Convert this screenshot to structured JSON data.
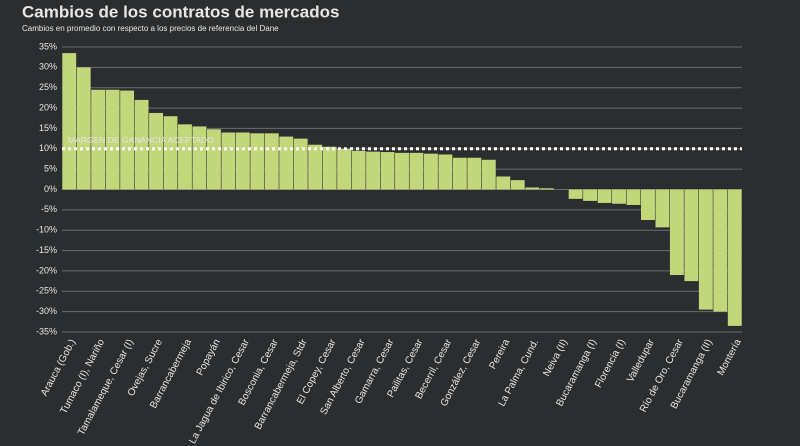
{
  "chart_data": {
    "type": "bar",
    "title": "Cambios de los contratos de mercados",
    "subtitle": "Cambios en promedio con respecto a los precios de referencia del Dane",
    "categories": [
      "Arauca (Gob.)",
      null,
      "Tumaco (I), Nariño",
      null,
      "Tamalameque, Cesar (I)",
      null,
      "Ovejas, Sucre",
      null,
      "Barrancabermeja",
      null,
      "Popayán",
      null,
      "La Jagua de Ibirico, Cesar",
      null,
      "Bosconia, Cesar",
      null,
      "Barrancabermeja, Stdr",
      null,
      "El Copey, Cesar",
      null,
      "San Alberto, Cesar",
      null,
      "Gamarra, Cesar",
      null,
      "Pailitas, Cesar",
      null,
      "Becerril, Cesar",
      null,
      "González, Cesar",
      null,
      "Pereira",
      null,
      "La Palma, Cund.",
      null,
      "Neiva (II)",
      null,
      "Bucaramanga (I)",
      null,
      "Florencia (I)",
      null,
      "Valledupar",
      null,
      "Río de Oro, Cesar",
      null,
      "Bucaramanga (II)",
      null,
      "Montería"
    ],
    "values": [
      33.5,
      30,
      24.5,
      24.5,
      24.3,
      22,
      18.8,
      18,
      16,
      15.5,
      14.8,
      14,
      14,
      13.8,
      13.8,
      13,
      12.5,
      11,
      10.5,
      10,
      9.5,
      9.3,
      9.2,
      9,
      9,
      8.8,
      8.6,
      7.8,
      7.8,
      7.3,
      3.2,
      2.3,
      0.5,
      0.3,
      0,
      -2.3,
      -2.8,
      -3.3,
      -3.5,
      -3.8,
      -7.5,
      -9.3,
      -21,
      -22.5,
      -29.5,
      -30,
      -33.5
    ],
    "color": "#c2d67a",
    "ylim": [
      -35,
      35
    ],
    "yticks": [
      {
        "value": -35,
        "label": "-35%"
      },
      {
        "value": -30,
        "label": "-30%"
      },
      {
        "value": -25,
        "label": "-25%"
      },
      {
        "value": -20,
        "label": "-20%"
      },
      {
        "value": -15,
        "label": "-15%"
      },
      {
        "value": -10,
        "label": "-10%"
      },
      {
        "value": -5,
        "label": "-5%"
      },
      {
        "value": 0,
        "label": "0%"
      },
      {
        "value": 5,
        "label": "5%"
      },
      {
        "value": 10,
        "label": "10%"
      },
      {
        "value": 15,
        "label": "15%"
      },
      {
        "value": 20,
        "label": "20%"
      },
      {
        "value": 25,
        "label": "25%"
      },
      {
        "value": 30,
        "label": "30%"
      },
      {
        "value": 35,
        "label": "35%"
      }
    ],
    "grid": true,
    "reference_line": {
      "value": 10,
      "label": "MARGEN DE GANANCIA ACEPTADO"
    }
  }
}
